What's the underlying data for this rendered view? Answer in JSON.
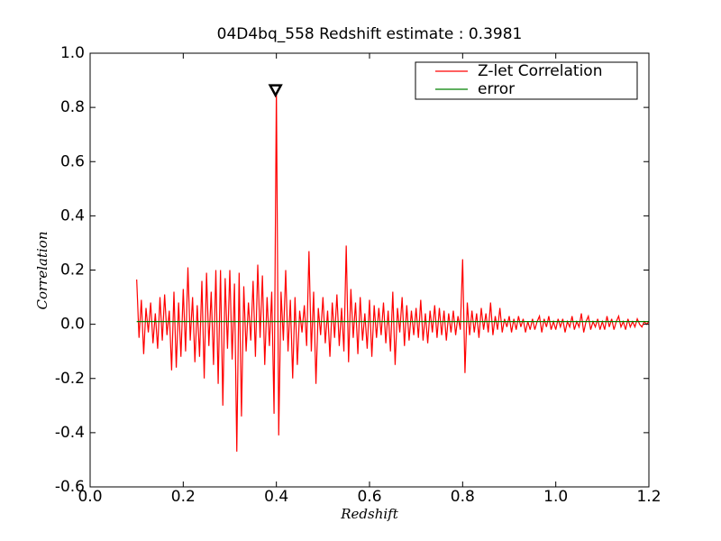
{
  "chart_data": {
    "type": "line",
    "title": "04D4bq_558 Redshift estimate : 0.3981",
    "xlabel": "Redshift",
    "ylabel": "Correlation",
    "xlim": [
      0,
      1.2
    ],
    "ylim": [
      -0.6,
      1.0
    ],
    "xticks": [
      {
        "value": 0,
        "label": "0.0"
      },
      0.2,
      0.4,
      0.6,
      0.8,
      {
        "value": 1,
        "label": "1.0"
      },
      1.2
    ],
    "yticks": [
      -0.6,
      -0.4,
      -0.2,
      {
        "value": 0,
        "label": "0.0"
      },
      0.2,
      0.4,
      0.6,
      0.8,
      {
        "value": 1,
        "label": "1.0"
      }
    ],
    "legend": "upper right",
    "peak": {
      "x": 0.3981,
      "y": 0.865
    },
    "series": [
      {
        "name": "Z-let Correlation",
        "color": "#ff0000",
        "x": [
          0.1,
          0.105,
          0.11,
          0.115,
          0.12,
          0.125,
          0.13,
          0.135,
          0.14,
          0.145,
          0.15,
          0.155,
          0.16,
          0.165,
          0.17,
          0.175,
          0.18,
          0.185,
          0.19,
          0.195,
          0.2,
          0.205,
          0.21,
          0.215,
          0.22,
          0.225,
          0.23,
          0.235,
          0.24,
          0.245,
          0.25,
          0.255,
          0.26,
          0.265,
          0.27,
          0.275,
          0.28,
          0.285,
          0.29,
          0.295,
          0.3,
          0.305,
          0.31,
          0.315,
          0.32,
          0.325,
          0.33,
          0.335,
          0.34,
          0.345,
          0.35,
          0.355,
          0.36,
          0.365,
          0.37,
          0.375,
          0.38,
          0.385,
          0.39,
          0.395,
          0.4,
          0.405,
          0.41,
          0.415,
          0.42,
          0.425,
          0.43,
          0.435,
          0.44,
          0.445,
          0.45,
          0.455,
          0.46,
          0.465,
          0.47,
          0.475,
          0.48,
          0.485,
          0.49,
          0.495,
          0.5,
          0.505,
          0.51,
          0.515,
          0.52,
          0.525,
          0.53,
          0.535,
          0.54,
          0.545,
          0.55,
          0.555,
          0.56,
          0.565,
          0.57,
          0.575,
          0.58,
          0.585,
          0.59,
          0.595,
          0.6,
          0.605,
          0.61,
          0.615,
          0.62,
          0.625,
          0.63,
          0.635,
          0.64,
          0.645,
          0.65,
          0.655,
          0.66,
          0.665,
          0.67,
          0.675,
          0.68,
          0.685,
          0.69,
          0.695,
          0.7,
          0.705,
          0.71,
          0.715,
          0.72,
          0.725,
          0.73,
          0.735,
          0.74,
          0.745,
          0.75,
          0.755,
          0.76,
          0.765,
          0.77,
          0.775,
          0.78,
          0.785,
          0.79,
          0.795,
          0.8,
          0.805,
          0.81,
          0.815,
          0.82,
          0.825,
          0.83,
          0.835,
          0.84,
          0.845,
          0.85,
          0.855,
          0.86,
          0.865,
          0.87,
          0.875,
          0.88,
          0.885,
          0.89,
          0.895,
          0.9,
          0.905,
          0.91,
          0.915,
          0.92,
          0.925,
          0.93,
          0.935,
          0.94,
          0.945,
          0.95,
          0.955,
          0.96,
          0.965,
          0.97,
          0.975,
          0.98,
          0.985,
          0.99,
          0.995,
          1.0,
          1.005,
          1.01,
          1.015,
          1.02,
          1.025,
          1.03,
          1.035,
          1.04,
          1.045,
          1.05,
          1.055,
          1.06,
          1.065,
          1.07,
          1.075,
          1.08,
          1.085,
          1.09,
          1.095,
          1.1,
          1.105,
          1.11,
          1.115,
          1.12,
          1.125,
          1.13,
          1.135,
          1.14,
          1.145,
          1.15,
          1.155,
          1.16,
          1.165,
          1.17,
          1.175,
          1.18,
          1.185,
          1.19,
          1.195,
          1.2
        ],
        "values": [
          0.165,
          -0.05,
          0.09,
          -0.11,
          0.06,
          -0.03,
          0.08,
          -0.07,
          0.04,
          -0.09,
          0.1,
          -0.06,
          0.11,
          -0.04,
          0.05,
          -0.17,
          0.12,
          -0.16,
          0.08,
          -0.12,
          0.13,
          -0.1,
          0.21,
          -0.06,
          0.1,
          -0.14,
          0.07,
          -0.12,
          0.16,
          -0.2,
          0.19,
          -0.08,
          0.12,
          -0.15,
          0.2,
          -0.22,
          0.2,
          -0.3,
          0.17,
          -0.09,
          0.2,
          -0.13,
          0.15,
          -0.47,
          0.19,
          -0.34,
          0.14,
          -0.1,
          0.08,
          -0.06,
          0.16,
          -0.12,
          0.22,
          -0.05,
          0.18,
          -0.15,
          0.1,
          -0.08,
          0.12,
          -0.33,
          0.87,
          -0.41,
          0.12,
          -0.06,
          0.2,
          -0.1,
          0.09,
          -0.2,
          0.1,
          -0.15,
          0.05,
          -0.03,
          0.07,
          -0.08,
          0.27,
          -0.1,
          0.12,
          -0.22,
          0.06,
          -0.04,
          0.1,
          -0.07,
          0.05,
          -0.12,
          0.08,
          -0.05,
          0.11,
          -0.08,
          0.06,
          -0.1,
          0.29,
          -0.14,
          0.13,
          -0.05,
          0.08,
          -0.11,
          0.1,
          -0.06,
          0.04,
          -0.09,
          0.09,
          -0.12,
          0.07,
          -0.05,
          0.06,
          -0.04,
          0.08,
          -0.07,
          0.05,
          -0.1,
          0.12,
          -0.15,
          0.06,
          -0.03,
          0.1,
          -0.08,
          0.07,
          -0.06,
          0.05,
          -0.04,
          0.06,
          -0.05,
          0.09,
          -0.06,
          0.04,
          -0.07,
          0.05,
          -0.03,
          0.07,
          -0.05,
          0.06,
          -0.04,
          0.05,
          -0.06,
          0.04,
          -0.03,
          0.05,
          -0.04,
          0.03,
          -0.02,
          0.24,
          -0.18,
          0.08,
          -0.04,
          0.05,
          -0.03,
          0.04,
          -0.05,
          0.06,
          -0.02,
          0.04,
          -0.03,
          0.08,
          -0.04,
          0.03,
          -0.02,
          0.06,
          -0.03,
          0.02,
          -0.01,
          0.03,
          -0.03,
          0.02,
          -0.02,
          0.03,
          -0.01,
          0.02,
          -0.03,
          0.01,
          -0.02,
          0.02,
          -0.02,
          0.01,
          0.03,
          -0.03,
          0.02,
          -0.01,
          0.03,
          -0.02,
          0.01,
          -0.02,
          0.02,
          -0.01,
          0.02,
          -0.03,
          0.01,
          -0.01,
          0.03,
          -0.02,
          0.01,
          -0.01,
          0.04,
          -0.03,
          0.01,
          0.03,
          -0.02,
          0.01,
          -0.01,
          0.02,
          -0.02,
          0.01,
          -0.02,
          0.03,
          -0.01,
          0.02,
          -0.02,
          0.01,
          0.03,
          -0.01,
          0.01,
          -0.02,
          0.02,
          -0.01,
          0.01,
          -0.01,
          0.02,
          0.0,
          -0.01,
          0.01,
          0.0,
          0.01
        ]
      },
      {
        "name": "error",
        "color": "#008000",
        "x": [
          0.1,
          1.2
        ],
        "values": [
          0.01,
          0.01
        ]
      }
    ]
  }
}
